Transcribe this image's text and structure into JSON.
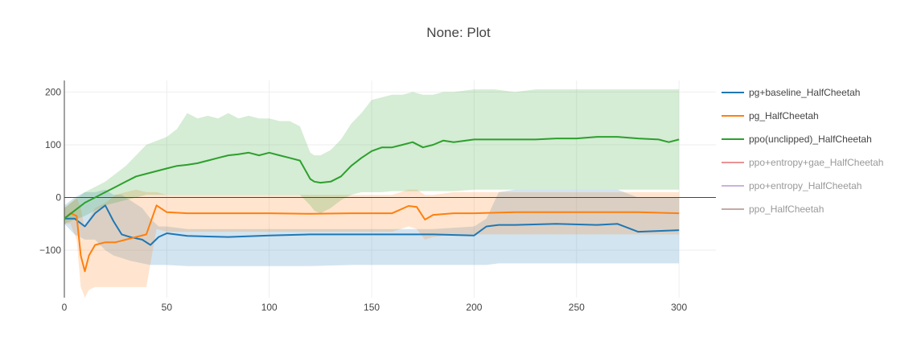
{
  "chart_data": {
    "type": "line",
    "title": "None: Plot",
    "xlabel": "",
    "ylabel": "",
    "xlim": [
      0,
      318
    ],
    "ylim": [
      -190,
      222
    ],
    "x_ticks": [
      0,
      50,
      100,
      150,
      200,
      250,
      300
    ],
    "y_ticks": [
      -100,
      0,
      100,
      200
    ],
    "y_tick_labels": [
      "−100",
      "0",
      "100",
      "200"
    ],
    "grid": true,
    "legend_position": "right",
    "series": [
      {
        "name": "pg+baseline_HalfCheetah",
        "color": "#1f77b4",
        "fill": "rgba(31,119,180,0.2)",
        "x": [
          0,
          5,
          10,
          15,
          20,
          24,
          28,
          32,
          38,
          42,
          46,
          50,
          60,
          80,
          100,
          120,
          140,
          160,
          180,
          200,
          206,
          212,
          220,
          240,
          260,
          270,
          280,
          300
        ],
        "y": [
          -40,
          -40,
          -55,
          -30,
          -15,
          -45,
          -70,
          -75,
          -80,
          -90,
          -75,
          -68,
          -73,
          -75,
          -72,
          -70,
          -70,
          -70,
          -70,
          -72,
          -55,
          -52,
          -52,
          -50,
          -52,
          -50,
          -65,
          -62
        ],
        "upper": [
          -15,
          0,
          10,
          10,
          15,
          5,
          5,
          -5,
          -20,
          -40,
          -55,
          -55,
          -60,
          -60,
          -60,
          -60,
          -60,
          -60,
          -60,
          -55,
          -40,
          10,
          15,
          15,
          15,
          15,
          0,
          0
        ],
        "lower": [
          -50,
          -70,
          -80,
          -80,
          -100,
          -110,
          -115,
          -120,
          -125,
          -128,
          -128,
          -128,
          -130,
          -130,
          -130,
          -130,
          -128,
          -128,
          -128,
          -128,
          -128,
          -125,
          -125,
          -125,
          -125,
          -125,
          -125,
          -125
        ]
      },
      {
        "name": "pg_HalfCheetah",
        "color": "#ff7f0e",
        "fill": "rgba(255,127,14,0.2)",
        "x": [
          0,
          3,
          6,
          8,
          10,
          12,
          15,
          20,
          25,
          30,
          35,
          40,
          45,
          50,
          60,
          80,
          100,
          120,
          140,
          160,
          168,
          172,
          176,
          180,
          190,
          200,
          220,
          240,
          260,
          280,
          300
        ],
        "y": [
          -40,
          -30,
          -35,
          -110,
          -140,
          -110,
          -90,
          -85,
          -85,
          -80,
          -75,
          -70,
          -15,
          -28,
          -30,
          -30,
          -30,
          -31,
          -30,
          -30,
          -16,
          -18,
          -42,
          -33,
          -30,
          -30,
          -28,
          -28,
          -28,
          -28,
          -30
        ],
        "upper": [
          -20,
          -10,
          0,
          -20,
          -60,
          -40,
          -20,
          -10,
          5,
          10,
          15,
          10,
          10,
          5,
          5,
          5,
          5,
          5,
          5,
          5,
          15,
          15,
          5,
          5,
          10,
          10,
          10,
          10,
          10,
          10,
          10
        ],
        "lower": [
          -50,
          -50,
          -80,
          -170,
          -190,
          -175,
          -170,
          -170,
          -170,
          -170,
          -170,
          -170,
          -60,
          -65,
          -65,
          -65,
          -65,
          -65,
          -65,
          -65,
          -55,
          -60,
          -80,
          -75,
          -70,
          -70,
          -70,
          -70,
          -70,
          -70,
          -70
        ]
      },
      {
        "name": "ppo(unclipped)_HalfCheetah",
        "color": "#2ca02c",
        "fill": "rgba(44,160,44,0.2)",
        "x": [
          0,
          10,
          15,
          20,
          25,
          30,
          35,
          40,
          50,
          55,
          60,
          65,
          70,
          75,
          80,
          85,
          90,
          95,
          100,
          105,
          110,
          115,
          120,
          122,
          125,
          130,
          135,
          140,
          145,
          150,
          155,
          160,
          165,
          170,
          175,
          180,
          185,
          190,
          200,
          210,
          220,
          230,
          240,
          250,
          260,
          270,
          280,
          290,
          295,
          300
        ],
        "y": [
          -40,
          -10,
          0,
          10,
          20,
          30,
          40,
          45,
          55,
          60,
          62,
          65,
          70,
          75,
          80,
          82,
          85,
          80,
          85,
          80,
          75,
          70,
          35,
          30,
          28,
          30,
          40,
          60,
          75,
          88,
          95,
          95,
          100,
          105,
          95,
          100,
          108,
          105,
          110,
          110,
          110,
          110,
          112,
          112,
          115,
          115,
          112,
          110,
          105,
          110
        ],
        "upper": [
          -20,
          10,
          20,
          30,
          45,
          60,
          80,
          100,
          115,
          130,
          160,
          150,
          155,
          150,
          160,
          150,
          155,
          150,
          150,
          145,
          145,
          135,
          85,
          80,
          80,
          90,
          110,
          140,
          160,
          185,
          190,
          195,
          195,
          200,
          195,
          195,
          200,
          200,
          205,
          205,
          200,
          205,
          205,
          205,
          205,
          205,
          205,
          205,
          205,
          205
        ],
        "lower": [
          -50,
          -35,
          -25,
          -15,
          -10,
          -5,
          0,
          5,
          5,
          5,
          5,
          5,
          5,
          5,
          5,
          5,
          5,
          5,
          5,
          5,
          5,
          5,
          -15,
          -25,
          -30,
          -20,
          -5,
          5,
          10,
          10,
          10,
          12,
          12,
          12,
          12,
          12,
          12,
          12,
          15,
          15,
          15,
          15,
          15,
          15,
          15,
          15,
          15,
          15,
          15,
          15
        ]
      },
      {
        "name": "ppo+entropy+gae_HalfCheetah",
        "color": "#d62728",
        "fill": "rgba(214,39,40,0.2)",
        "x": [],
        "y": [],
        "upper": [],
        "lower": [],
        "hidden": true
      },
      {
        "name": "ppo+entropy_HalfCheetah",
        "color": "#9467bd",
        "fill": "rgba(148,103,189,0.2)",
        "x": [],
        "y": [],
        "upper": [],
        "lower": [],
        "hidden": true
      },
      {
        "name": "ppo_HalfCheetah",
        "color": "#8c564b",
        "fill": "rgba(140,86,75,0.2)",
        "x": [],
        "y": [],
        "upper": [],
        "lower": [],
        "hidden": true
      }
    ]
  }
}
